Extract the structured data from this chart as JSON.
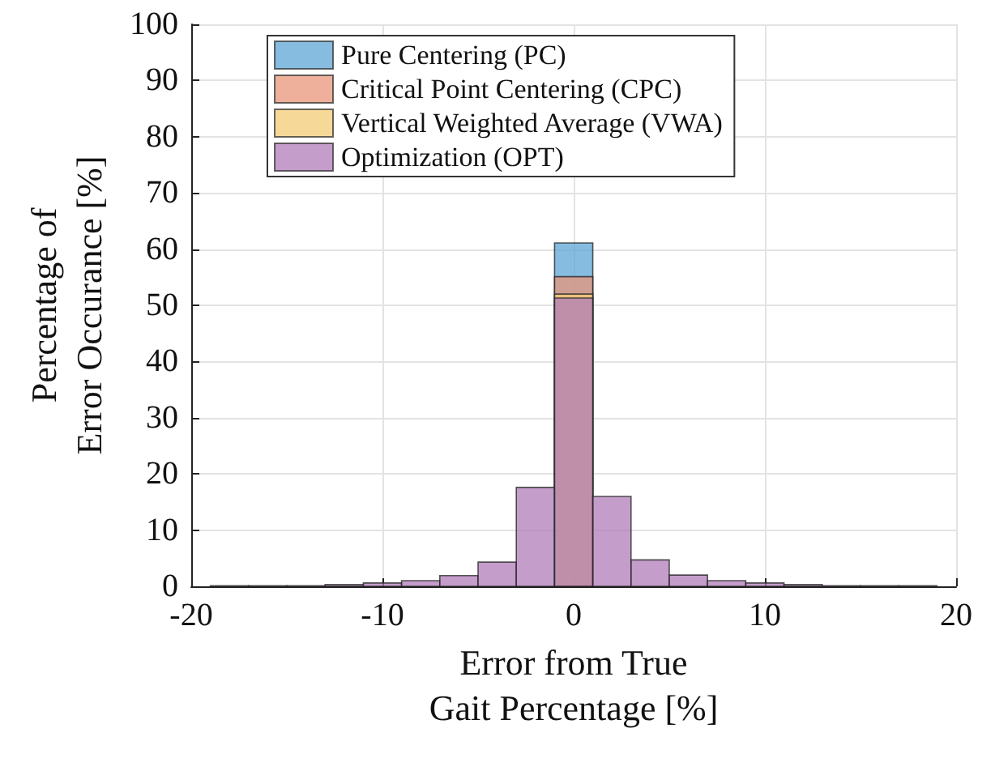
{
  "chart_data": {
    "type": "histogram",
    "xlabel": "Error from True\nGait Percentage [%]",
    "ylabel": "Percentage of\nError Occurance [%]",
    "bins": [
      -19,
      -17,
      -15,
      -13,
      -11,
      -9,
      -7,
      -5,
      -3,
      -1,
      1,
      3,
      5,
      7,
      9,
      11,
      13,
      15,
      17,
      19
    ],
    "series": [
      {
        "name": "Pure Centering (PC)",
        "color": "#5ea6d6",
        "values": [
          null,
          null,
          null,
          null,
          null,
          null,
          null,
          null,
          null,
          61.1,
          null,
          null,
          null,
          null,
          null,
          null,
          null,
          null,
          null
        ]
      },
      {
        "name": "Critical Point Centering (CPC)",
        "color": "#e8967a",
        "values": [
          null,
          null,
          null,
          null,
          null,
          null,
          null,
          null,
          null,
          55.1,
          null,
          null,
          null,
          null,
          null,
          null,
          null,
          null,
          null
        ]
      },
      {
        "name": "Vertical Weighted Average (VWA)",
        "color": "#f3cc75",
        "values": [
          null,
          null,
          null,
          null,
          null,
          null,
          null,
          null,
          null,
          52.0,
          null,
          null,
          null,
          null,
          null,
          null,
          null,
          null,
          null
        ]
      },
      {
        "name": "Optimization (OPT)",
        "color": "#b07cb8",
        "values": [
          0.1,
          0.1,
          0.1,
          0.3,
          0.6,
          1.0,
          1.9,
          4.3,
          17.6,
          51.3,
          16.0,
          4.7,
          2.0,
          1.0,
          0.6,
          0.3,
          0.1,
          0.1,
          0.1
        ]
      }
    ],
    "xlim": [
      -20,
      20
    ],
    "xticks": [
      -20,
      -10,
      0,
      10,
      20
    ],
    "ylim": [
      0,
      100
    ],
    "yticks": [
      0,
      10,
      20,
      30,
      40,
      50,
      60,
      70,
      80,
      90,
      100
    ],
    "grid": true,
    "legend": "top left"
  }
}
